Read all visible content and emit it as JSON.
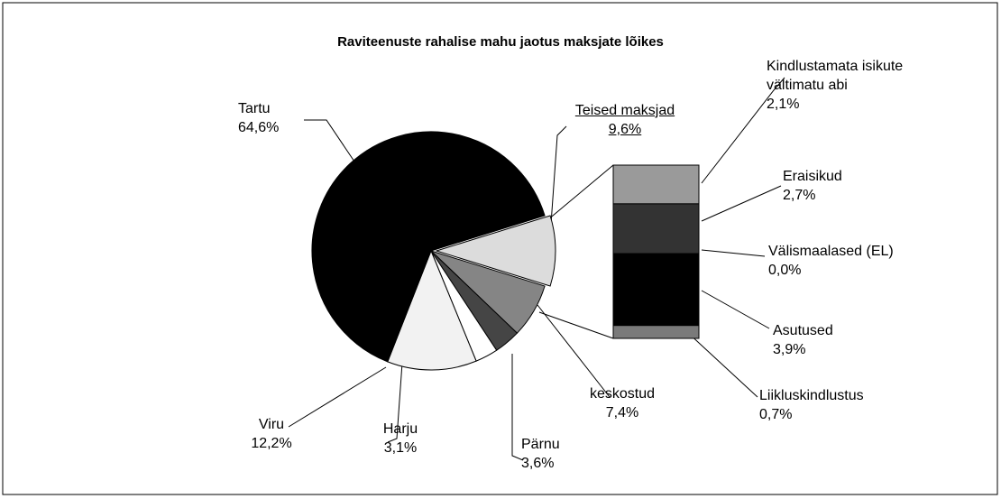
{
  "chart_data": {
    "type": "pie",
    "title": "Raviteenuste rahalise mahu jaotus maksjate lõikes",
    "categories": [
      "Teised maksjad",
      "keskostud",
      "Pärnu",
      "Harju",
      "Viru",
      "Tartu"
    ],
    "values": [
      9.6,
      7.4,
      3.6,
      3.1,
      12.2,
      64.6
    ],
    "value_labels": [
      "9,6%",
      "7,4%",
      "3,6%",
      "3,1%",
      "12,2%",
      "64,6%"
    ],
    "colors": [
      "#dcdcdc",
      "#858585",
      "#454545",
      "#ffffff",
      "#f2f2f2",
      "#000000"
    ],
    "bar": {
      "categories": [
        "Kindlustamata isikute vältimatu abi",
        "Eraisikud",
        "Välismaalased (EL)",
        "Asutused",
        "Liikluskindlustus"
      ],
      "values": [
        2.1,
        2.7,
        0.0,
        3.9,
        0.7
      ],
      "value_labels": [
        "2,1%",
        "2,7%",
        "0,0%",
        "3,9%",
        "0,7%"
      ],
      "colors": [
        "#9a9a9a",
        "#333333",
        "#111111",
        "#000000",
        "#7a7a7a"
      ]
    }
  }
}
